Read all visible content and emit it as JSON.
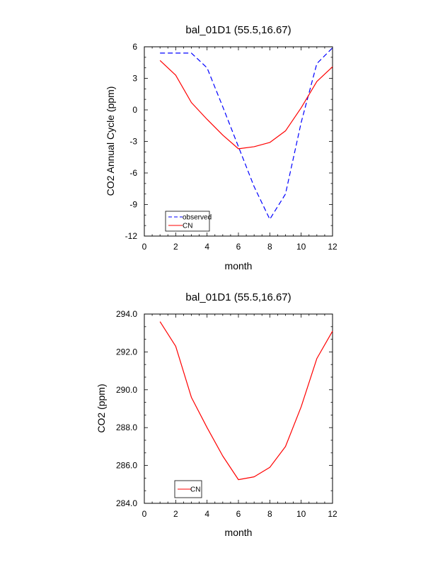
{
  "chart_data": [
    {
      "type": "line",
      "title": "bal_01D1 (55.5,16.67)",
      "xlabel": "month",
      "ylabel": "CO2 Annual Cycle (ppm)",
      "xlim": [
        0,
        12
      ],
      "ylim": [
        -12,
        6
      ],
      "xticks": [
        0,
        2,
        4,
        6,
        8,
        10,
        12
      ],
      "yticks": [
        -12,
        -9,
        -6,
        -3,
        0,
        3,
        6
      ],
      "ytick_labels": [
        "-12",
        "-9",
        "-6",
        "-3",
        "0",
        "3",
        "6"
      ],
      "x": [
        1,
        2,
        3,
        4,
        5,
        6,
        7,
        8,
        9,
        10,
        11,
        12
      ],
      "series": [
        {
          "name": "observed",
          "color": "#0000ff",
          "dash": "dashed",
          "values": [
            5.4,
            5.4,
            5.4,
            4.0,
            0.3,
            -3.5,
            -7.3,
            -10.4,
            -8.0,
            -1.2,
            4.4,
            5.9
          ]
        },
        {
          "name": "CN",
          "color": "#ff0000",
          "dash": "solid",
          "values": [
            4.7,
            3.3,
            0.7,
            -0.9,
            -2.4,
            -3.7,
            -3.5,
            -3.1,
            -2.0,
            0.2,
            2.7,
            4.1
          ]
        }
      ],
      "legend": [
        "observed",
        "CN"
      ],
      "legend_position": "bottom-left"
    },
    {
      "type": "line",
      "title": "bal_01D1 (55.5,16.67)",
      "xlabel": "month",
      "ylabel": "CO2 (ppm)",
      "xlim": [
        0,
        12
      ],
      "ylim": [
        284,
        294
      ],
      "xticks": [
        0,
        2,
        4,
        6,
        8,
        10,
        12
      ],
      "yticks": [
        284,
        286,
        288,
        290,
        292,
        294
      ],
      "ytick_labels": [
        "284.0",
        "286.0",
        "288.0",
        "290.0",
        "292.0",
        "294.0"
      ],
      "x": [
        1,
        2,
        3,
        4,
        5,
        6,
        7,
        8,
        9,
        10,
        11,
        12
      ],
      "series": [
        {
          "name": "CN",
          "color": "#ff0000",
          "dash": "solid",
          "values": [
            293.6,
            292.3,
            289.6,
            288.0,
            286.5,
            285.25,
            285.4,
            285.9,
            287.0,
            289.1,
            291.65,
            293.1
          ]
        }
      ],
      "legend": [
        "CN"
      ],
      "legend_position": "bottom-left"
    }
  ]
}
